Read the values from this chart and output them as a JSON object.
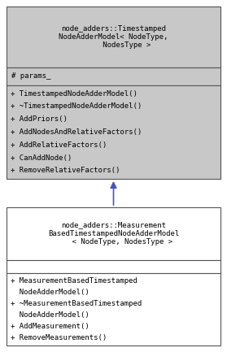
{
  "bg_color": "#ffffff",
  "box_border_color": "#555555",
  "box_fill_gray": "#c8c8c8",
  "box_fill_white": "#ffffff",
  "arrow_color": "#4455bb",
  "font_size": 6.5,
  "parent_title": "node_adders::Timestamped\nNodeAdderModel< NodeType,\n      NodesType >",
  "parent_attr": "# params_",
  "parent_methods": [
    "+ TimestampedNodeAdderModel()",
    "+ ~TimestampedNodeAdderModel()",
    "+ AddPriors()",
    "+ AddNodesAndRelativeFactors()",
    "+ AddRelativeFactors()",
    "+ CanAddNode()",
    "+ RemoveRelativeFactors()"
  ],
  "child_title": "node_adders::Measurement\nBasedTimestampedNodeAdderModel\n    < NodeType, NodesType >",
  "child_attr": "",
  "child_methods": [
    "+ MeasurementBasedTimestamped",
    "  NodeAdderModel()",
    "+ ~MeasurementBasedTimestamped",
    "  NodeAdderModel()",
    "+ AddMeasurement()",
    "+ RemoveMeasurements()"
  ],
  "fig_w": 2.79,
  "fig_h": 4.33,
  "dpi": 100
}
